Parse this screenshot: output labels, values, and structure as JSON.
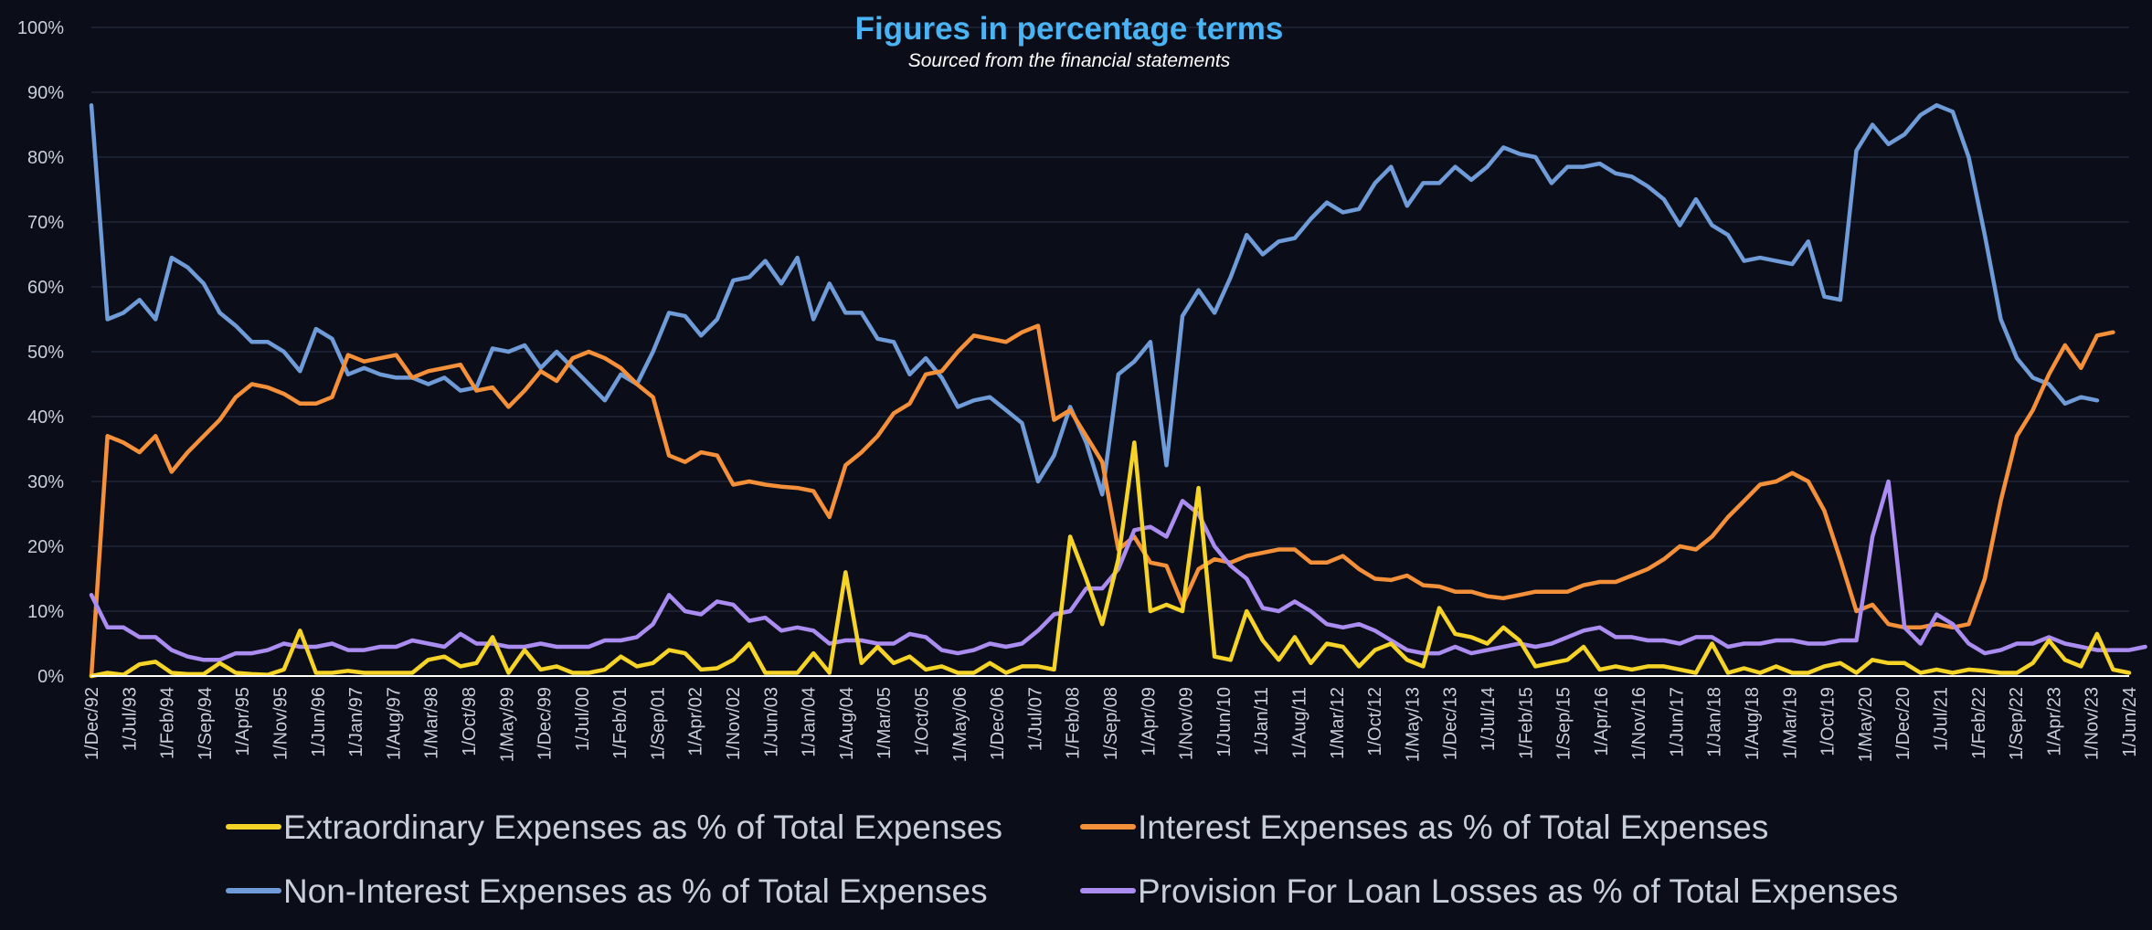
{
  "chart_data": {
    "type": "line",
    "title": "Figures in percentage terms",
    "subtitle": "Sourced from the financial statements",
    "ylim": [
      0,
      100
    ],
    "y_ticks": [
      0,
      10,
      20,
      30,
      40,
      50,
      60,
      70,
      80,
      90,
      100
    ],
    "y_tick_labels": [
      "0%",
      "10%",
      "20%",
      "30%",
      "40%",
      "50%",
      "60%",
      "70%",
      "80%",
      "90%",
      "100%"
    ],
    "grid": true,
    "legend_position": "bottom",
    "x_tick_labels": [
      "1/Dec/92",
      "1/Jul/93",
      "1/Feb/94",
      "1/Sep/94",
      "1/Apr/95",
      "1/Nov/95",
      "1/Jun/96",
      "1/Jan/97",
      "1/Aug/97",
      "1/Mar/98",
      "1/Oct/98",
      "1/May/99",
      "1/Dec/99",
      "1/Jul/00",
      "1/Feb/01",
      "1/Sep/01",
      "1/Apr/02",
      "1/Nov/02",
      "1/Jun/03",
      "1/Jan/04",
      "1/Aug/04",
      "1/Mar/05",
      "1/Oct/05",
      "1/May/06",
      "1/Dec/06",
      "1/Jul/07",
      "1/Feb/08",
      "1/Sep/08",
      "1/Apr/09",
      "1/Nov/09",
      "1/Jun/10",
      "1/Jan/11",
      "1/Aug/11",
      "1/Mar/12",
      "1/Oct/12",
      "1/May/13",
      "1/Dec/13",
      "1/Jul/14",
      "1/Feb/15",
      "1/Sep/15",
      "1/Apr/16",
      "1/Nov/16",
      "1/Jun/17",
      "1/Jan/18",
      "1/Aug/18",
      "1/Mar/19",
      "1/Oct/19",
      "1/May/20",
      "1/Dec/20",
      "1/Jul/21",
      "1/Feb/22",
      "1/Sep/22",
      "1/Apr/23",
      "1/Nov/23",
      "1/Jun/24"
    ],
    "x_start": "1/Dec/92",
    "x_end": "1/Jun/24",
    "x_frequency": "quarterly",
    "series": [
      {
        "name": "Extraordinary Expenses as % of Total Expenses",
        "color": "#f5d327",
        "values": [
          0,
          0.5,
          0.2,
          1.8,
          2.2,
          0.5,
          0.3,
          0.3,
          2,
          0.5,
          0.3,
          0.2,
          1,
          7,
          0.5,
          0.5,
          0.8,
          0.5,
          0.5,
          0.5,
          0.5,
          2.5,
          3,
          1.5,
          2,
          6,
          0.5,
          4,
          1,
          1.5,
          0.5,
          0.5,
          1,
          3,
          1.5,
          2,
          4,
          3.5,
          1,
          1.2,
          2.5,
          5,
          0.5,
          0.5,
          0.5,
          3.5,
          0.5,
          16,
          2,
          4.5,
          2,
          3,
          1,
          1.5,
          0.5,
          0.5,
          2,
          0.5,
          1.5,
          1.5,
          1,
          21.5,
          15,
          8,
          18,
          36,
          10,
          11,
          10,
          29,
          3,
          2.5,
          10,
          5.5,
          2.5,
          6,
          2,
          5,
          4.5,
          1.5,
          4,
          5,
          2.5,
          1.5,
          10.5,
          6.5,
          6,
          5,
          7.5,
          5.5,
          1.5,
          2,
          2.5,
          4.5,
          1,
          1.5,
          1,
          1.5,
          1.5,
          1,
          0.5,
          5,
          0.5,
          1.2,
          0.5,
          1.5,
          0.5,
          0.5,
          1.5,
          2,
          0.5,
          2.5,
          2,
          2,
          0.5,
          1,
          0.5,
          1,
          0.8,
          0.5,
          0.5,
          2,
          5.5,
          2.5,
          1.5,
          6.5,
          1,
          0.5
        ]
      },
      {
        "name": "Interest Expenses as % of Total Expenses",
        "color": "#f5903a",
        "values": [
          0,
          37,
          36,
          34.5,
          37,
          31.5,
          34.5,
          37,
          39.5,
          43,
          45,
          44.5,
          43.5,
          42,
          42,
          43,
          49.5,
          48.5,
          49,
          49.5,
          46,
          47,
          47.5,
          48,
          44,
          44.5,
          41.5,
          44,
          47,
          45.5,
          49,
          50,
          49,
          47.5,
          45,
          43,
          34,
          33,
          34.5,
          34,
          29.5,
          30,
          29.5,
          29.2,
          29,
          28.5,
          24.5,
          32.5,
          34.5,
          37,
          40.5,
          42,
          46.5,
          47,
          50,
          52.5,
          52,
          51.5,
          53,
          54,
          39.5,
          41,
          37,
          33,
          19.5,
          21.5,
          17.5,
          17,
          11,
          16.5,
          18,
          17.5,
          18.5,
          19,
          19.5,
          19.5,
          17.5,
          17.5,
          18.5,
          16.5,
          15,
          14.8,
          15.5,
          14,
          13.8,
          13,
          13,
          12.3,
          12,
          12.5,
          13,
          13,
          13,
          14,
          14.5,
          14.5,
          15.5,
          16.5,
          18,
          20,
          19.5,
          21.5,
          24.5,
          27,
          29.5,
          30,
          31.3,
          30,
          25.5,
          18,
          10,
          11,
          8,
          7.5,
          7.5,
          8,
          7.5,
          8,
          15,
          27,
          37,
          41,
          46.5,
          51,
          47.5,
          52.5,
          53
        ]
      },
      {
        "name": "Non-Interest Expenses as % of Total Expenses",
        "color": "#6f9bd8",
        "values": [
          88,
          55,
          56,
          58,
          55,
          64.5,
          63,
          60.5,
          56,
          54,
          51.5,
          51.5,
          50,
          47,
          53.5,
          52,
          46.5,
          47.5,
          46.5,
          46,
          46,
          45,
          46,
          44,
          44.5,
          50.5,
          50,
          51,
          47.5,
          50,
          47.5,
          45,
          42.5,
          46.5,
          45,
          50,
          56,
          55.5,
          52.5,
          55,
          61,
          61.5,
          64,
          60.5,
          64.5,
          55,
          60.5,
          56,
          56,
          52,
          51.5,
          46.5,
          49,
          46,
          41.5,
          42.5,
          43,
          41,
          39,
          30,
          34,
          41.5,
          36,
          28,
          46.5,
          48.5,
          51.5,
          32.5,
          55.5,
          59.5,
          56,
          61.5,
          68,
          65,
          67,
          67.5,
          70.5,
          73,
          71.5,
          72,
          76,
          78.5,
          72.5,
          76,
          76,
          78.5,
          76.5,
          78.5,
          81.5,
          80.5,
          80,
          76,
          78.5,
          78.5,
          79,
          77.5,
          77,
          75.5,
          73.5,
          69.5,
          73.5,
          69.5,
          68,
          64,
          64.5,
          64,
          63.5,
          67,
          58.5,
          58,
          81,
          85,
          82,
          83.5,
          86.5,
          88,
          87,
          80,
          68,
          55,
          49,
          46,
          45,
          42,
          43,
          42.5
        ]
      },
      {
        "name": "Provision For Loan Losses as % of Total Expenses",
        "color": "#ab8cf0",
        "values": [
          12.5,
          7.5,
          7.5,
          6,
          6,
          4,
          3,
          2.5,
          2.5,
          3.5,
          3.5,
          4,
          5,
          4.5,
          4.5,
          5,
          4,
          4,
          4.5,
          4.5,
          5.5,
          5,
          4.5,
          6.5,
          5,
          5,
          4.5,
          4.5,
          5,
          4.5,
          4.5,
          4.5,
          5.5,
          5.5,
          6,
          8,
          12.5,
          10,
          9.5,
          11.5,
          11,
          8.5,
          9,
          7,
          7.5,
          7,
          5,
          5.5,
          5.5,
          5,
          5,
          6.5,
          6,
          4,
          3.5,
          4,
          5,
          4.5,
          5,
          7,
          9.5,
          10,
          13.5,
          13.5,
          16.5,
          22.5,
          23,
          21.5,
          27,
          25,
          20,
          17,
          15,
          10.5,
          10,
          11.5,
          10,
          8,
          7.5,
          8,
          7,
          5.5,
          4,
          3.5,
          3.5,
          4.5,
          3.5,
          4,
          4.5,
          5,
          4.5,
          5,
          6,
          7,
          7.5,
          6,
          6,
          5.5,
          5.5,
          5,
          6,
          6,
          4.5,
          5,
          5,
          5.5,
          5.5,
          5,
          5,
          5.5,
          5.5,
          21.5,
          30,
          7.5,
          5,
          9.5,
          8,
          5,
          3.5,
          4,
          5,
          5,
          6,
          5,
          4.5,
          4,
          4,
          4,
          4.5
        ]
      }
    ]
  }
}
